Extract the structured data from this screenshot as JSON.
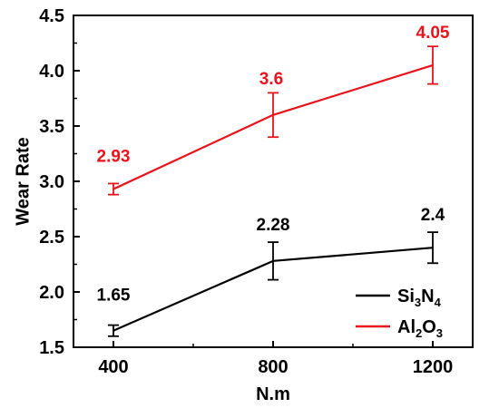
{
  "chart_data": {
    "type": "line",
    "xlabel": "N.m",
    "ylabel": "Wear Rate",
    "x": [
      400,
      800,
      1200
    ],
    "xticks": [
      "400",
      "800",
      "1200"
    ],
    "xlim": [
      300,
      1300
    ],
    "ylim": [
      1.5,
      4.5
    ],
    "yticks": [
      "1.5",
      "2.0",
      "2.5",
      "3.0",
      "3.5",
      "4.0",
      "4.5"
    ],
    "grid": false,
    "legend_position": "bottom-right",
    "series": [
      {
        "key": "si3n4",
        "name_base": [
          "Si",
          "N"
        ],
        "name_subs": [
          "3",
          "4"
        ],
        "color": "#000000",
        "values": [
          1.65,
          2.28,
          2.4
        ],
        "errors": [
          0.05,
          0.17,
          0.14
        ],
        "labels": [
          "1.65",
          "2.28",
          "2.4"
        ]
      },
      {
        "key": "al2o3",
        "name_base": [
          "Al",
          "O"
        ],
        "name_subs": [
          "2",
          "3"
        ],
        "color": "#e8141b",
        "values": [
          2.93,
          3.6,
          4.05
        ],
        "errors": [
          0.05,
          0.2,
          0.17
        ],
        "labels": [
          "2.93",
          "3.6",
          "4.05"
        ]
      }
    ]
  }
}
